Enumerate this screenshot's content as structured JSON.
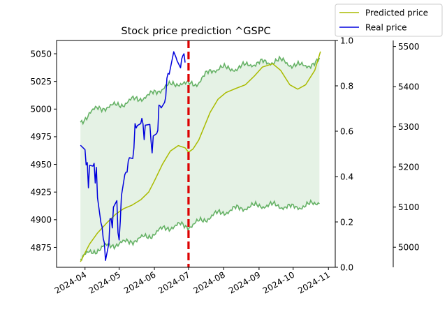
{
  "chart_data": {
    "type": "line",
    "title": "Stock price prediction ^GSPC",
    "colors": {
      "predicted": "#aabb00",
      "real": "#0000dd",
      "band_line": "#66b266",
      "band_fill": "#e5f2e5",
      "split_line": "#dd0000"
    },
    "x_axis": {
      "type": "date",
      "range": [
        "2024-03-07",
        "2024-11-07"
      ],
      "ticks": [
        "2024-04",
        "2024-05",
        "2024-06",
        "2024-07",
        "2024-08",
        "2024-09",
        "2024-10",
        "2024-11"
      ],
      "tick_dates": [
        "2024-04-01",
        "2024-05-01",
        "2024-06-01",
        "2024-07-01",
        "2024-08-01",
        "2024-09-01",
        "2024-10-01",
        "2024-11-01"
      ]
    },
    "left_axis": {
      "ylim": [
        4857,
        5062
      ],
      "ticks": [
        "4875",
        "4900",
        "4925",
        "4950",
        "4975",
        "5000",
        "5025",
        "5050"
      ],
      "tick_values": [
        4875,
        4900,
        4925,
        4950,
        4975,
        5000,
        5025,
        5050
      ]
    },
    "middle_axis": {
      "ylim": [
        0,
        1
      ],
      "ticks": [
        "0.0",
        "0.2",
        "0.4",
        "0.6",
        "0.8",
        "1.0"
      ],
      "tick_values": [
        0,
        0.2,
        0.4,
        0.6,
        0.8,
        1.0
      ]
    },
    "right_axis": {
      "ylim": [
        4950,
        5515
      ],
      "ticks": [
        "5000",
        "5100",
        "5200",
        "5300",
        "5400",
        "5500"
      ],
      "tick_values": [
        5000,
        5100,
        5200,
        5300,
        5400,
        5500
      ]
    },
    "split_date": "2024-07-01",
    "legend": {
      "position": "top-right",
      "entries": [
        "Predicted price",
        "Real price"
      ]
    },
    "series": [
      {
        "name": "Predicted price",
        "axis": "left",
        "x": [
          "2024-03-28",
          "2024-04-05",
          "2024-04-12",
          "2024-04-20",
          "2024-04-28",
          "2024-05-05",
          "2024-05-12",
          "2024-05-20",
          "2024-05-27",
          "2024-06-01",
          "2024-06-08",
          "2024-06-15",
          "2024-06-22",
          "2024-06-28",
          "2024-07-01",
          "2024-07-05",
          "2024-07-10",
          "2024-07-20",
          "2024-07-27",
          "2024-08-03",
          "2024-08-10",
          "2024-08-20",
          "2024-08-28",
          "2024-09-04",
          "2024-09-13",
          "2024-09-20",
          "2024-09-28",
          "2024-10-05",
          "2024-10-12",
          "2024-10-20",
          "2024-10-25"
        ],
        "y": [
          4862,
          4878,
          4888,
          4897,
          4905,
          4910,
          4913,
          4918,
          4925,
          4935,
          4950,
          4962,
          4967,
          4965,
          4961,
          4964,
          4972,
          4997,
          5009,
          5015,
          5018,
          5022,
          5030,
          5038,
          5041,
          5035,
          5022,
          5018,
          5022,
          5035,
          5052
        ]
      },
      {
        "name": "Real price",
        "axis": "right",
        "x": [
          "2024-03-28",
          "2024-04-01",
          "2024-04-02",
          "2024-04-03",
          "2024-04-04",
          "2024-04-05",
          "2024-04-08",
          "2024-04-09",
          "2024-04-10",
          "2024-04-11",
          "2024-04-12",
          "2024-04-15",
          "2024-04-16",
          "2024-04-17",
          "2024-04-18",
          "2024-04-19",
          "2024-04-22",
          "2024-04-23",
          "2024-04-24",
          "2024-04-25",
          "2024-04-26",
          "2024-04-29",
          "2024-04-30",
          "2024-05-01",
          "2024-05-02",
          "2024-05-03",
          "2024-05-06",
          "2024-05-07",
          "2024-05-08",
          "2024-05-09",
          "2024-05-10",
          "2024-05-13",
          "2024-05-14",
          "2024-05-15",
          "2024-05-16",
          "2024-05-17",
          "2024-05-20",
          "2024-05-21",
          "2024-05-22",
          "2024-05-23",
          "2024-05-24",
          "2024-05-28",
          "2024-05-29",
          "2024-05-30",
          "2024-05-31",
          "2024-06-03",
          "2024-06-04",
          "2024-06-05",
          "2024-06-06",
          "2024-06-07",
          "2024-06-10",
          "2024-06-11",
          "2024-06-12",
          "2024-06-13",
          "2024-06-14",
          "2024-06-17",
          "2024-06-18",
          "2024-06-20",
          "2024-06-21",
          "2024-06-24",
          "2024-06-25",
          "2024-06-26",
          "2024-06-27",
          "2024-06-28"
        ],
        "y": [
          5254,
          5243,
          5205,
          5211,
          5148,
          5204,
          5202,
          5209,
          5160,
          5199,
          5123,
          5061,
          5051,
          5022,
          5011,
          4967,
          5010,
          5071,
          5071,
          5048,
          5100,
          5116,
          5036,
          5018,
          5064,
          5128,
          5181,
          5187,
          5187,
          5214,
          5223,
          5221,
          5247,
          5308,
          5297,
          5303,
          5308,
          5321,
          5307,
          5268,
          5304,
          5306,
          5266,
          5235,
          5277,
          5283,
          5291,
          5354,
          5352,
          5347,
          5361,
          5375,
          5421,
          5433,
          5431,
          5473,
          5487,
          5473,
          5464,
          5447,
          5469,
          5477,
          5482,
          5460
        ]
      },
      {
        "name": "",
        "axis": "left",
        "band": "upper",
        "x": [
          "2024-03-28",
          "2024-04-05",
          "2024-04-12",
          "2024-04-20",
          "2024-04-28",
          "2024-05-05",
          "2024-05-12",
          "2024-05-20",
          "2024-05-27",
          "2024-06-03",
          "2024-06-10",
          "2024-06-17",
          "2024-06-24",
          "2024-07-01",
          "2024-07-08",
          "2024-07-15",
          "2024-07-22",
          "2024-07-29",
          "2024-08-05",
          "2024-08-12",
          "2024-08-19",
          "2024-08-26",
          "2024-09-02",
          "2024-09-09",
          "2024-09-16",
          "2024-09-23",
          "2024-09-30",
          "2024-10-07",
          "2024-10-14",
          "2024-10-21",
          "2024-10-25"
        ],
        "y": [
          4987,
          4997,
          5000,
          5002,
          5003,
          5005,
          5008,
          5010,
          5012,
          5016,
          5020,
          5022,
          5024,
          5022,
          5023,
          5030,
          5035,
          5038,
          5036,
          5037,
          5039,
          5041,
          5042,
          5042,
          5044,
          5043,
          5040,
          5039,
          5040,
          5041,
          5045
        ]
      },
      {
        "name": "",
        "axis": "left",
        "band": "lower",
        "x": [
          "2024-03-28",
          "2024-04-05",
          "2024-04-12",
          "2024-04-20",
          "2024-04-28",
          "2024-05-05",
          "2024-05-12",
          "2024-05-20",
          "2024-05-27",
          "2024-06-03",
          "2024-06-10",
          "2024-06-17",
          "2024-06-24",
          "2024-07-01",
          "2024-07-08",
          "2024-07-15",
          "2024-07-22",
          "2024-07-29",
          "2024-08-05",
          "2024-08-12",
          "2024-08-19",
          "2024-08-26",
          "2024-09-02",
          "2024-09-09",
          "2024-09-16",
          "2024-09-23",
          "2024-09-30",
          "2024-10-07",
          "2024-10-14",
          "2024-10-21",
          "2024-10-25"
        ],
        "y": [
          4865,
          4870,
          4873,
          4876,
          4878,
          4879,
          4881,
          4883,
          4885,
          4889,
          4892,
          4894,
          4895,
          4894,
          4897,
          4900,
          4904,
          4906,
          4908,
          4910,
          4911,
          4912,
          4913,
          4913,
          4913,
          4912,
          4911,
          4912,
          4913,
          4915,
          4918
        ]
      }
    ]
  }
}
